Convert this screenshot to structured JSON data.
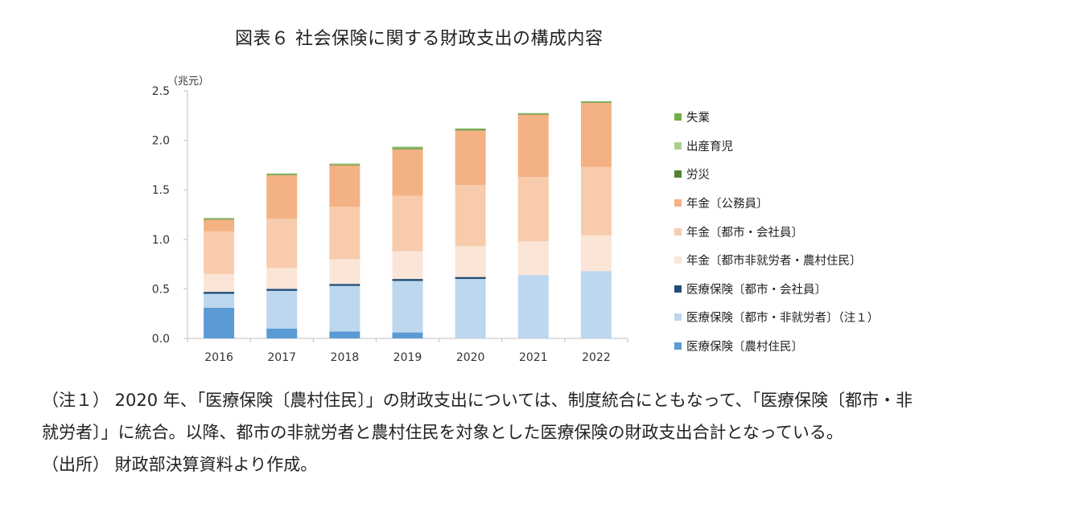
{
  "title": "図表６ 社会保険に関する財政支出の構成内容",
  "unit_label": "（兆元）",
  "notes": [
    "（注１） 2020 年、「医療保険〔農村住民〕」の財政支出については、制度統合にともなって、「医療保険〔都市・非",
    "就労者〕」に統合。以降、都市の非就労者と農村住民を対象とした医療保険の財政支出合計となっている。",
    "（出所） 財政部決算資料より作成。"
  ],
  "chart_data": {
    "type": "bar",
    "stacked": true,
    "categories": [
      "2016",
      "2017",
      "2018",
      "2019",
      "2020",
      "2021",
      "2022"
    ],
    "ylim": [
      0,
      2.5
    ],
    "yticks": [
      "0.0",
      "0.5",
      "1.0",
      "1.5",
      "2.0",
      "2.5"
    ],
    "grid": false,
    "legend_position": "right",
    "series": [
      {
        "name": "医療保険〔農村住民〕",
        "color": "#5b9bd5",
        "values": [
          0.31,
          0.1,
          0.07,
          0.06,
          0.0,
          0.0,
          0.0
        ]
      },
      {
        "name": "医療保険〔都市・非就労者〕（注１）",
        "color": "#bdd7ee",
        "values": [
          0.14,
          0.38,
          0.46,
          0.52,
          0.6,
          0.64,
          0.68
        ]
      },
      {
        "name": "医療保険〔都市・会社員〕",
        "color": "#1f4e79",
        "values": [
          0.02,
          0.02,
          0.02,
          0.02,
          0.02,
          0.0,
          0.0
        ]
      },
      {
        "name": "年金〔都市非就労者・農村住民〕",
        "color": "#fbe5d6",
        "values": [
          0.18,
          0.21,
          0.25,
          0.28,
          0.31,
          0.34,
          0.36
        ]
      },
      {
        "name": "年金〔都市・会社員〕",
        "color": "#f8cbad",
        "values": [
          0.43,
          0.5,
          0.53,
          0.56,
          0.62,
          0.65,
          0.69
        ]
      },
      {
        "name": "年金〔公務員〕",
        "color": "#f4b183",
        "values": [
          0.12,
          0.44,
          0.42,
          0.47,
          0.55,
          0.63,
          0.65
        ]
      },
      {
        "name": "労災",
        "color": "#548235",
        "values": [
          0.005,
          0.005,
          0.005,
          0.01,
          0.01,
          0.005,
          0.005
        ]
      },
      {
        "name": "出産育児",
        "color": "#a9d18e",
        "values": [
          0.005,
          0.005,
          0.005,
          0.005,
          0.005,
          0.005,
          0.005
        ]
      },
      {
        "name": "失業",
        "color": "#70ad47",
        "values": [
          0.005,
          0.005,
          0.005,
          0.01,
          0.005,
          0.005,
          0.005
        ]
      }
    ]
  }
}
